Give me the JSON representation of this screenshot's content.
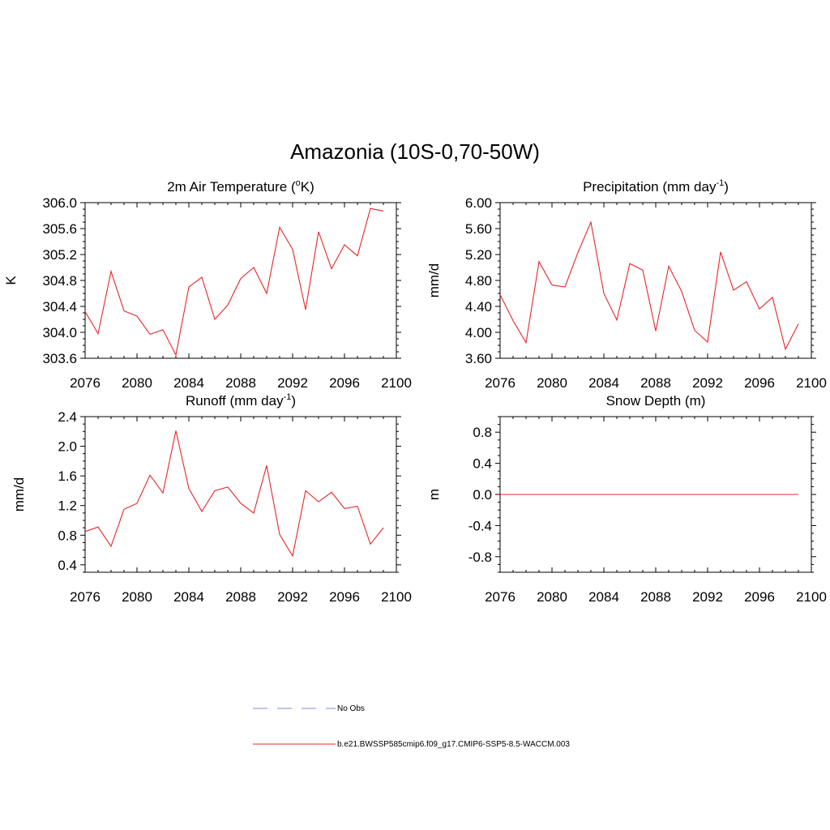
{
  "title": "Amazonia (10S-0,70-50W)",
  "colors": {
    "series": "#e8262b",
    "obs": "#9aa0d8",
    "axis": "#000000"
  },
  "legend": {
    "obs_label": "No Obs",
    "model_label": "b.e21.BWSSP585cmip6.f09_g17.CMIP6-SSP5-8.5-WACCM.003"
  },
  "chart_data": [
    {
      "id": "temp",
      "type": "line",
      "title": "2m Air Temperature (",
      "title_sup": "o",
      "title_tail": "K)",
      "ylabel": "K",
      "xlim": [
        2076,
        2100
      ],
      "ylim": [
        303.6,
        306.0
      ],
      "xticks": [
        2076,
        2080,
        2084,
        2088,
        2092,
        2096,
        2100
      ],
      "yticks": [
        303.6,
        304.0,
        304.4,
        304.8,
        305.2,
        305.6,
        306.0
      ],
      "ydecimals": 1,
      "x": [
        2076,
        2077,
        2078,
        2079,
        2080,
        2081,
        2082,
        2083,
        2084,
        2085,
        2086,
        2087,
        2088,
        2089,
        2090,
        2091,
        2092,
        2093,
        2094,
        2095,
        2096,
        2097,
        2098,
        2099
      ],
      "values": [
        304.32,
        303.98,
        304.94,
        304.33,
        304.25,
        303.97,
        304.04,
        303.65,
        304.7,
        304.85,
        304.2,
        304.42,
        304.83,
        305.0,
        304.6,
        305.62,
        305.28,
        304.35,
        305.55,
        304.98,
        305.35,
        305.18,
        305.91,
        305.87
      ]
    },
    {
      "id": "precip",
      "type": "line",
      "title": "Precipitation (mm day",
      "title_sup": "-1",
      "title_tail": ")",
      "ylabel": "mm/d",
      "xlim": [
        2076,
        2100
      ],
      "ylim": [
        3.6,
        6.0
      ],
      "xticks": [
        2076,
        2080,
        2084,
        2088,
        2092,
        2096,
        2100
      ],
      "yticks": [
        3.6,
        4.0,
        4.4,
        4.8,
        5.2,
        5.6,
        6.0
      ],
      "ydecimals": 2,
      "x": [
        2076,
        2077,
        2078,
        2079,
        2080,
        2081,
        2082,
        2083,
        2084,
        2085,
        2086,
        2087,
        2088,
        2089,
        2090,
        2091,
        2092,
        2093,
        2094,
        2095,
        2096,
        2097,
        2098,
        2099
      ],
      "values": [
        4.58,
        4.18,
        3.84,
        5.09,
        4.73,
        4.7,
        5.23,
        5.7,
        4.6,
        4.19,
        5.06,
        4.96,
        4.02,
        5.02,
        4.63,
        4.03,
        3.85,
        5.24,
        4.65,
        4.78,
        4.36,
        4.54,
        3.74,
        4.13
      ]
    },
    {
      "id": "runoff",
      "type": "line",
      "title": "Runoff (mm day",
      "title_sup": "-1",
      "title_tail": ")",
      "ylabel": "mm/d",
      "xlim": [
        2076,
        2100
      ],
      "ylim": [
        0.3,
        2.4
      ],
      "xticks": [
        2076,
        2080,
        2084,
        2088,
        2092,
        2096,
        2100
      ],
      "yticks": [
        0.4,
        0.8,
        1.2,
        1.6,
        2.0,
        2.4
      ],
      "ydecimals": 1,
      "x": [
        2076,
        2077,
        2078,
        2079,
        2080,
        2081,
        2082,
        2083,
        2084,
        2085,
        2086,
        2087,
        2088,
        2089,
        2090,
        2091,
        2092,
        2093,
        2094,
        2095,
        2096,
        2097,
        2098,
        2099
      ],
      "values": [
        0.85,
        0.91,
        0.65,
        1.15,
        1.23,
        1.61,
        1.37,
        2.21,
        1.43,
        1.12,
        1.4,
        1.45,
        1.23,
        1.1,
        1.74,
        0.81,
        0.52,
        1.4,
        1.25,
        1.38,
        1.16,
        1.19,
        0.68,
        0.9
      ]
    },
    {
      "id": "snow",
      "type": "line",
      "title": "Snow Depth (m)",
      "title_sup": "",
      "title_tail": "",
      "ylabel": "m",
      "xlim": [
        2076,
        2100
      ],
      "ylim": [
        -1.0,
        1.0
      ],
      "xticks": [
        2076,
        2080,
        2084,
        2088,
        2092,
        2096,
        2100
      ],
      "yticks": [
        -0.8,
        -0.4,
        0.0,
        0.4,
        0.8
      ],
      "ydecimals": 1,
      "x": [
        2076,
        2077,
        2078,
        2079,
        2080,
        2081,
        2082,
        2083,
        2084,
        2085,
        2086,
        2087,
        2088,
        2089,
        2090,
        2091,
        2092,
        2093,
        2094,
        2095,
        2096,
        2097,
        2098,
        2099
      ],
      "values": [
        0,
        0,
        0,
        0,
        0,
        0,
        0,
        0,
        0,
        0,
        0,
        0,
        0,
        0,
        0,
        0,
        0,
        0,
        0,
        0,
        0,
        0,
        0,
        0
      ]
    }
  ]
}
